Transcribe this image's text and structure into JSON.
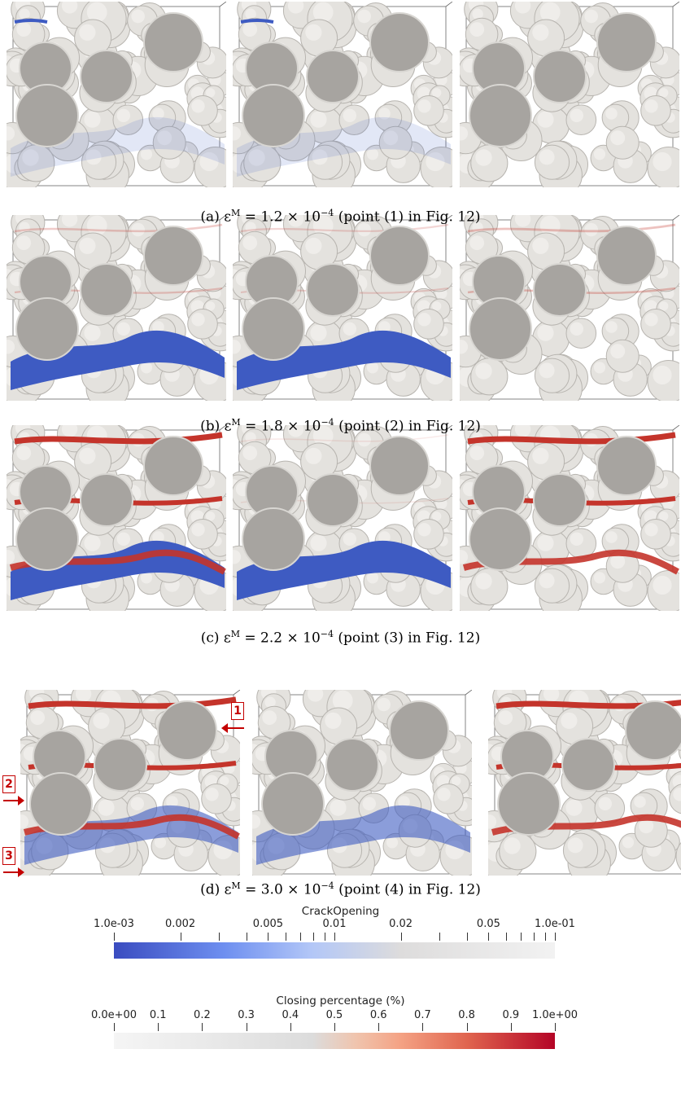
{
  "captions": {
    "a": {
      "prefix": "(a) ε",
      "sup": "M",
      "mid": " = 1.2 × 10",
      "exp": "−4",
      "suffix": " (point (1) in Fig. 12)"
    },
    "b": {
      "prefix": "(b) ε",
      "sup": "M",
      "mid": " = 1.8 × 10",
      "exp": "−4",
      "suffix": " (point (2) in Fig. 12)"
    },
    "c": {
      "prefix": "(c) ε",
      "sup": "M",
      "mid": " = 2.2 × 10",
      "exp": "−4",
      "suffix": " (point (3) in Fig. 12)"
    },
    "d": {
      "prefix": "(d) ε",
      "sup": "M",
      "mid": " = 3.0 × 10",
      "exp": "−4",
      "suffix": " (point (4) in Fig. 12)"
    }
  },
  "markers": [
    "1",
    "2",
    "3"
  ],
  "colorbars": {
    "crack_opening": {
      "title": "CrackOpening",
      "scale": "log",
      "range": [
        0.001,
        0.1
      ],
      "labels": [
        "1.0e-03",
        "0.002",
        "0.005",
        "0.01",
        "0.02",
        "0.05",
        "1.0e-01"
      ],
      "colors": [
        "#3a4cc0",
        "#8db0fe",
        "#dddcdc",
        "#f5f5f5"
      ]
    },
    "closing": {
      "title": "Closing percentage (%)",
      "scale": "linear",
      "range": [
        0,
        1
      ],
      "labels": [
        "0.0e+00",
        "0.1",
        "0.2",
        "0.3",
        "0.4",
        "0.5",
        "0.6",
        "0.7",
        "0.8",
        "0.9",
        "1.0e+00"
      ],
      "colors": [
        "#f5f5f5",
        "#dddcdc",
        "#f4a284",
        "#d44e41",
        "#b40426"
      ]
    }
  },
  "colors": {
    "aggregate": "#e4e2de",
    "inclusion": "#a7a4a0",
    "crack_blue": "#3e5bc2",
    "crack_red": "#c4342b",
    "marker_red": "#c40000"
  }
}
